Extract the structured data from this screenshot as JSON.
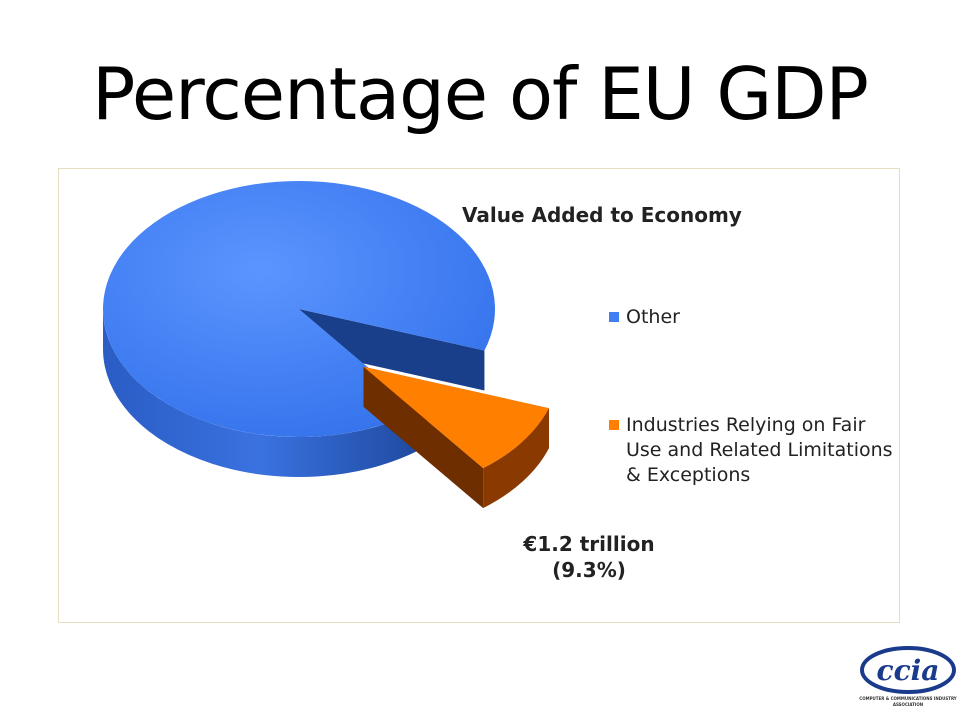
{
  "slide": {
    "title": "Percentage of EU GDP"
  },
  "chart_data": {
    "type": "pie",
    "title": "Value Added to Economy",
    "slices": [
      {
        "name": "Other",
        "value": 90.7,
        "color": "#3f7ff2",
        "side_color": "#2456b8"
      },
      {
        "name": "Industries Relying on Fair Use and Related Limitations & Exceptions",
        "value": 9.3,
        "color": "#ff7f00",
        "side_color": "#8a3a00",
        "exploded": true
      }
    ],
    "data_labels": [
      {
        "slice": 1,
        "line1": "€1.2 trillion",
        "line2": "(9.3%)"
      }
    ],
    "legend_placement": "right",
    "style": "3d-exploded"
  },
  "logo": {
    "text": "ccia",
    "org": "COMPUTER & COMMUNICATIONS INDUSTRY ASSOCIATION",
    "color": "#1a3a8c"
  }
}
